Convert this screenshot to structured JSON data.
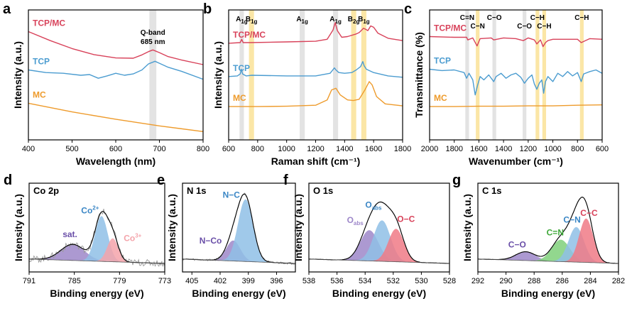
{
  "colors": {
    "tcpmc": "#d8425a",
    "tcp": "#4b9cd0",
    "mc": "#ee9b2c",
    "co_peak_main": "#8fbfe6",
    "co_peak_right": "#f4a3aa",
    "co_peak_sat": "#9d87c9",
    "n_peak_main": "#8fbfe6",
    "n_peak_minor": "#9d87c9",
    "o_peak_left": "#9d87c9",
    "o_peak_mid": "#8fbfe6",
    "o_peak_right": "#f07a86",
    "c_peak_co": "#9d87c9",
    "c_peak_cn_d": "#7fd07a",
    "c_peak_cn": "#8fbfe6",
    "c_peak_cc": "#f07a86",
    "band_gray": "#e3e3e3",
    "band_yellow": "#fbe6a6"
  },
  "chart_data": [
    {
      "id": "a",
      "type": "line",
      "panel_letter": "a",
      "xlabel": "Wavelength (nm)",
      "ylabel": "Intensity (a.u.)",
      "xlim": [
        400,
        800
      ],
      "xticks": [
        "400",
        "500",
        "600",
        "700",
        "800"
      ],
      "annotation": {
        "line1": "Q-band",
        "line2": "685 nm",
        "x": 685
      },
      "bands": [
        {
          "from": 677,
          "to": 693,
          "color": "gray"
        }
      ],
      "series": [
        {
          "name": "TCP/MC",
          "color": "tcpmc",
          "x": [
            400,
            450,
            500,
            550,
            600,
            640,
            660,
            675,
            685,
            700,
            720,
            750,
            800
          ],
          "y": [
            2.45,
            2.18,
            1.94,
            1.76,
            1.66,
            1.65,
            1.75,
            1.85,
            1.9,
            1.82,
            1.7,
            1.6,
            1.46
          ]
        },
        {
          "name": "TCP",
          "color": "tcp",
          "x": [
            400,
            440,
            480,
            520,
            540,
            560,
            580,
            600,
            620,
            640,
            660,
            675,
            690,
            700,
            720,
            750,
            800
          ],
          "y": [
            1.3,
            1.22,
            1.2,
            1.14,
            1.16,
            1.05,
            1.12,
            1.2,
            1.14,
            1.18,
            1.3,
            1.48,
            1.56,
            1.5,
            1.38,
            1.26,
            1.02
          ]
        },
        {
          "name": "MC",
          "color": "mc",
          "x": [
            400,
            500,
            600,
            700,
            800
          ],
          "y": [
            0.3,
            0.04,
            -0.18,
            -0.38,
            -0.55
          ]
        }
      ]
    },
    {
      "id": "b",
      "type": "line",
      "panel_letter": "b",
      "xlabel": "Raman shift (cm⁻¹)",
      "ylabel": "Intensity (a.u.)",
      "xlim": [
        600,
        1800
      ],
      "xticks": [
        "600",
        "800",
        "1000",
        "1200",
        "1400",
        "1600",
        "1800"
      ],
      "bands": [
        {
          "from": 675,
          "to": 705,
          "color": "gray",
          "label": "A",
          "sub": "1g"
        },
        {
          "from": 740,
          "to": 775,
          "color": "yellow",
          "label": "B",
          "sub": "1g"
        },
        {
          "from": 1090,
          "to": 1125,
          "color": "gray",
          "label": "A",
          "sub": "1g"
        },
        {
          "from": 1320,
          "to": 1355,
          "color": "gray",
          "label": "A",
          "sub": "1g"
        },
        {
          "from": 1445,
          "to": 1480,
          "color": "yellow",
          "label": "B",
          "sub": "2g"
        },
        {
          "from": 1515,
          "to": 1550,
          "color": "yellow",
          "label": "B",
          "sub": "1g"
        }
      ],
      "series": [
        {
          "name": "TCP/MC",
          "color": "tcpmc",
          "x": [
            600,
            680,
            690,
            700,
            750,
            1000,
            1200,
            1280,
            1320,
            1335,
            1350,
            1380,
            1420,
            1480,
            1500,
            1530,
            1545,
            1560,
            1580,
            1600,
            1630,
            1700,
            1800
          ],
          "y": [
            2.1,
            2.12,
            2.22,
            2.12,
            2.12,
            2.14,
            2.16,
            2.22,
            2.5,
            2.72,
            2.48,
            2.28,
            2.3,
            2.38,
            2.42,
            2.55,
            2.52,
            2.48,
            2.62,
            2.58,
            2.4,
            2.25,
            2.18
          ]
        },
        {
          "name": "TCP",
          "color": "tcp",
          "x": [
            600,
            660,
            680,
            688,
            696,
            720,
            760,
            1000,
            1100,
            1200,
            1300,
            1330,
            1340,
            1360,
            1400,
            1450,
            1480,
            1510,
            1525,
            1535,
            1550,
            1600,
            1700,
            1800
          ],
          "y": [
            1.1,
            1.12,
            1.18,
            1.32,
            1.18,
            1.12,
            1.14,
            1.12,
            1.12,
            1.12,
            1.2,
            1.36,
            1.3,
            1.22,
            1.2,
            1.22,
            1.3,
            1.4,
            1.55,
            1.42,
            1.32,
            1.22,
            1.12,
            1.08
          ]
        },
        {
          "name": "MC",
          "color": "mc",
          "x": [
            600,
            800,
            1000,
            1200,
            1280,
            1310,
            1340,
            1370,
            1420,
            1460,
            1500,
            1540,
            1570,
            1590,
            1620,
            1680,
            1800
          ],
          "y": [
            0.2,
            0.2,
            0.21,
            0.24,
            0.4,
            0.7,
            0.75,
            0.55,
            0.4,
            0.38,
            0.42,
            0.7,
            0.95,
            0.85,
            0.5,
            0.28,
            0.22
          ]
        }
      ]
    },
    {
      "id": "c",
      "type": "line",
      "panel_letter": "c",
      "xlabel": "Wavenumber (cm⁻¹)",
      "ylabel": "Transmittance (%)",
      "xlim": [
        2000,
        600
      ],
      "xticks": [
        "2000",
        "1800",
        "1600",
        "1400",
        "1200",
        "1000",
        "800",
        "600"
      ],
      "bands": [
        {
          "from": 1710,
          "to": 1680,
          "color": "gray",
          "label": "C=N",
          "row": 0
        },
        {
          "from": 1625,
          "to": 1595,
          "color": "yellow",
          "label": "C−N",
          "row": 1
        },
        {
          "from": 1490,
          "to": 1460,
          "color": "gray",
          "label": "C−O",
          "row": 0
        },
        {
          "from": 1245,
          "to": 1215,
          "color": "gray",
          "label": "C−O",
          "row": 1
        },
        {
          "from": 1140,
          "to": 1110,
          "color": "yellow",
          "label": "C−H",
          "row": 0
        },
        {
          "from": 1085,
          "to": 1055,
          "color": "yellow",
          "label": "C−H",
          "row": 1
        },
        {
          "from": 780,
          "to": 750,
          "color": "yellow",
          "label": "C−H",
          "row": 0
        }
      ],
      "series": [
        {
          "name": "TCP/MC",
          "color": "tcpmc",
          "x": [
            2000,
            1800,
            1700,
            1690,
            1650,
            1615,
            1590,
            1500,
            1480,
            1400,
            1300,
            1240,
            1200,
            1150,
            1130,
            1100,
            1080,
            1060,
            1040,
            1000,
            900,
            800,
            770,
            700,
            600
          ],
          "y": [
            2.3,
            2.28,
            2.28,
            2.2,
            2.26,
            2.02,
            2.24,
            2.26,
            2.2,
            2.26,
            2.24,
            2.18,
            2.26,
            2.2,
            2.08,
            2.2,
            2.0,
            2.12,
            2.18,
            2.22,
            2.22,
            2.22,
            2.12,
            2.24,
            2.22
          ]
        },
        {
          "name": "TCP",
          "color": "tcp",
          "x": [
            2000,
            1900,
            1800,
            1720,
            1700,
            1680,
            1650,
            1630,
            1610,
            1590,
            1560,
            1520,
            1480,
            1460,
            1420,
            1380,
            1340,
            1300,
            1260,
            1230,
            1200,
            1170,
            1150,
            1130,
            1110,
            1090,
            1075,
            1060,
            1040,
            1000,
            960,
            920,
            880,
            840,
            800,
            770,
            750,
            700,
            650,
            600
          ],
          "y": [
            1.32,
            1.28,
            1.3,
            1.22,
            1.05,
            1.2,
            1.0,
            0.55,
            0.85,
            1.1,
            1.0,
            1.15,
            0.95,
            1.1,
            1.2,
            1.05,
            1.15,
            1.2,
            1.08,
            0.9,
            1.05,
            1.15,
            0.88,
            0.72,
            0.9,
            1.0,
            0.6,
            0.95,
            1.1,
            0.95,
            1.2,
            1.1,
            1.25,
            1.12,
            1.22,
            0.95,
            1.18,
            1.25,
            1.3,
            1.2
          ]
        },
        {
          "name": "MC",
          "color": "mc",
          "x": [
            2000,
            1800,
            1600,
            1400,
            1200,
            1000,
            800,
            600
          ],
          "y": [
            0.2,
            0.2,
            0.21,
            0.21,
            0.22,
            0.22,
            0.24,
            0.25
          ]
        }
      ]
    },
    {
      "id": "d",
      "type": "area",
      "panel_letter": "d",
      "inset_title": "Co 2p",
      "xlabel": "Binding energy (eV)",
      "ylabel": "Intensity (a.u.)",
      "xlim": [
        791,
        773
      ],
      "xticks": [
        "791",
        "785",
        "779",
        "773"
      ],
      "peaks": [
        {
          "label": "sat.",
          "color": "co_peak_sat",
          "center": 785.2,
          "width": 1.6,
          "height": 0.22
        },
        {
          "label": "Co",
          "sup": "2+",
          "color": "co_peak_main",
          "center": 781.4,
          "width": 0.85,
          "height": 0.62
        },
        {
          "label": "Co",
          "sup": "3+",
          "color": "co_peak_right",
          "center": 779.9,
          "width": 0.75,
          "height": 0.32
        }
      ]
    },
    {
      "id": "e",
      "type": "area",
      "panel_letter": "e",
      "inset_title": "N 1s",
      "xlabel": "Binding energy (eV)",
      "ylabel": "Intensity (a.u.)",
      "xlim": [
        406,
        394
      ],
      "xticks": [
        "405",
        "402",
        "399",
        "396"
      ],
      "peaks": [
        {
          "label": "N−Co",
          "color": "n_peak_minor",
          "center": 400.6,
          "width": 0.75,
          "height": 0.28
        },
        {
          "label": "N−C",
          "color": "n_peak_main",
          "center": 399.3,
          "width": 0.8,
          "height": 0.85
        }
      ]
    },
    {
      "id": "f",
      "type": "area",
      "panel_letter": "f",
      "inset_title": "O 1s",
      "xlabel": "Binding energy (eV)",
      "ylabel": "Intensity (a.u.)",
      "xlim": [
        538,
        528
      ],
      "xticks": [
        "538",
        "536",
        "534",
        "532",
        "530",
        "528"
      ],
      "peaks": [
        {
          "label": "O",
          "sub": "abs",
          "color": "o_peak_left",
          "center": 533.7,
          "width": 0.65,
          "height": 0.42
        },
        {
          "label": "O",
          "sub": "abs",
          "color": "o_peak_mid",
          "center": 532.8,
          "width": 0.6,
          "height": 0.56
        },
        {
          "label": "O−C",
          "color": "o_peak_right",
          "center": 531.8,
          "width": 0.55,
          "height": 0.45
        }
      ]
    },
    {
      "id": "g",
      "type": "area",
      "panel_letter": "g",
      "inset_title": "C 1s",
      "xlabel": "Binding energy (eV)",
      "ylabel": "Intensity (a.u.)",
      "xlim": [
        292,
        282
      ],
      "xticks": [
        "292",
        "290",
        "288",
        "286",
        "284",
        "282"
      ],
      "peaks": [
        {
          "label": "C−O",
          "color": "c_peak_co",
          "center": 288.6,
          "width": 0.7,
          "height": 0.12
        },
        {
          "label": "C=N",
          "color": "c_peak_cn_d",
          "center": 286.1,
          "width": 0.65,
          "height": 0.3
        },
        {
          "label": "C−N",
          "color": "c_peak_cn",
          "center": 285.0,
          "width": 0.55,
          "height": 0.48
        },
        {
          "label": "C−C",
          "color": "c_peak_cc",
          "center": 284.3,
          "width": 0.5,
          "height": 0.6
        }
      ]
    }
  ]
}
